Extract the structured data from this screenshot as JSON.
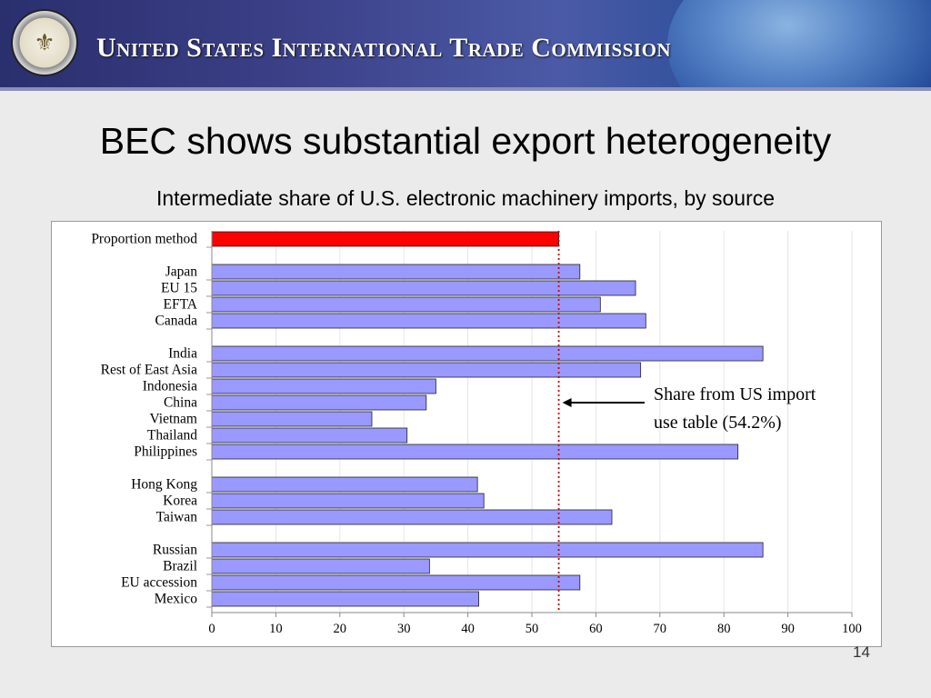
{
  "header": {
    "agency_name": "United States International Trade Commission",
    "seal_icon": "usitc-seal-icon"
  },
  "slide": {
    "title": "BEC shows substantial export heterogeneity",
    "subtitle": "Intermediate share of U.S. electronic machinery imports, by source",
    "page_number": "14"
  },
  "chart_data": {
    "type": "bar",
    "orientation": "horizontal",
    "categories": [
      "Proportion method",
      "Japan",
      "EU 15",
      "EFTA",
      "Canada",
      "India",
      "Rest of East Asia",
      "Indonesia",
      "China",
      "Vietnam",
      "Thailand",
      "Philippines",
      "Hong Kong",
      "Korea",
      "Taiwan",
      "Russian",
      "Brazil",
      "EU accession",
      "Mexico"
    ],
    "values": [
      54.2,
      57.5,
      66.2,
      60.7,
      67.8,
      86.1,
      67.0,
      35.0,
      33.5,
      25.0,
      30.5,
      82.2,
      41.5,
      42.5,
      62.5,
      86.1,
      34.0,
      57.5,
      41.7
    ],
    "groups": [
      [
        0
      ],
      [
        1,
        2,
        3,
        4
      ],
      [
        5,
        6,
        7,
        8,
        9,
        10,
        11
      ],
      [
        12,
        13,
        14
      ],
      [
        15,
        16,
        17,
        18
      ]
    ],
    "xlim": [
      0,
      100
    ],
    "xticks": [
      "0",
      "10",
      "20",
      "30",
      "40",
      "50",
      "60",
      "70",
      "80",
      "90",
      "100"
    ],
    "highlight_color": "#ff0000",
    "bar_color": "#9999ff",
    "grid": true,
    "reference_line": {
      "value": 54.2,
      "color": "#cc0000",
      "style": "dotted"
    },
    "annotation": {
      "line1": "Share from US import",
      "line2": "use table (54.2%)"
    }
  }
}
